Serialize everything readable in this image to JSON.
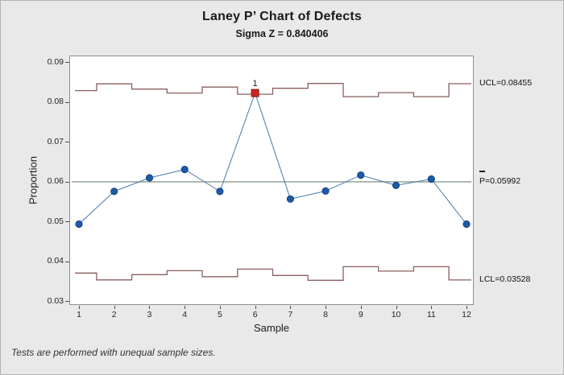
{
  "window": {
    "background": "#e9e9e9",
    "border_color": "#b3b3b3"
  },
  "footer": {
    "note": "Tests are performed with unequal sample sizes."
  },
  "chart_data": {
    "type": "line",
    "subtype": "laney-p-prime-control-chart",
    "title": "Laney P’ Chart of Defects",
    "subtitle": "Sigma Z = 0.840406",
    "xlabel": "Sample",
    "ylabel": "Proportion",
    "samples": [
      1,
      2,
      3,
      4,
      5,
      6,
      7,
      8,
      9,
      10,
      11,
      12
    ],
    "proportions": [
      0.0493,
      0.0575,
      0.0609,
      0.063,
      0.0575,
      0.0822,
      0.0556,
      0.0576,
      0.0616,
      0.059,
      0.0606,
      0.0493
    ],
    "ucl_steps": [
      0.0828,
      0.0845,
      0.0832,
      0.0822,
      0.0837,
      0.0819,
      0.0834,
      0.0846,
      0.0813,
      0.0823,
      0.0813,
      0.08455
    ],
    "lcl_steps": [
      0.037,
      0.0353,
      0.0366,
      0.0376,
      0.0361,
      0.038,
      0.0364,
      0.0352,
      0.0386,
      0.0375,
      0.0386,
      0.03528
    ],
    "center_value": 0.05992,
    "ucl_label": "UCL=0.08455",
    "center_label": "P=0.05992",
    "lcl_label": "LCL=0.03528",
    "out_of_control": [
      {
        "sample": 6,
        "value": 0.0822,
        "flag": "1"
      }
    ],
    "ytick_values": [
      0.09,
      0.08,
      0.07,
      0.06,
      0.05,
      0.04,
      0.03
    ],
    "ytick_labels": [
      "0.09",
      "0.08",
      "0.07",
      "0.06",
      "0.05",
      "0.04",
      "0.03"
    ],
    "xtick_labels": [
      "1",
      "2",
      "3",
      "4",
      "5",
      "6",
      "7",
      "8",
      "9",
      "10",
      "11",
      "12"
    ],
    "ylim": [
      0.0286,
      0.0914
    ],
    "grid": "off",
    "legend": "none",
    "colors": {
      "point": "#1d5aa4",
      "point_stroke": "#12427c",
      "connect_line": "#4a77ad",
      "limit_line": "#8a5f5f",
      "center_line": "#9cab9e",
      "out_of_control": "#cc2522",
      "out_of_control_stroke": "#8a1713",
      "plot_background": "#ffffff"
    }
  }
}
